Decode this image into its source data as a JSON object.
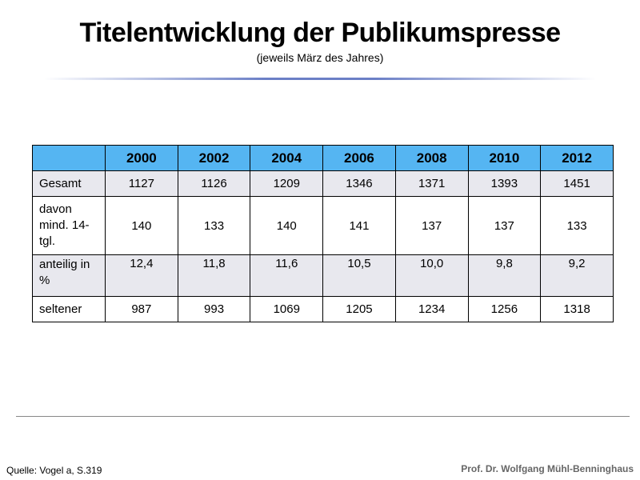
{
  "header": {
    "title": "Titelentwicklung der Publikumspresse",
    "subtitle": "(jeweils März des Jahres)"
  },
  "table": {
    "columns": [
      "2000",
      "2002",
      "2004",
      "2006",
      "2008",
      "2010",
      "2012"
    ],
    "rows": [
      {
        "label": "Gesamt",
        "cells": [
          "1127",
          "1126",
          "1209",
          "1346",
          "1371",
          "1393",
          "1451"
        ]
      },
      {
        "label": "davon mind. 14-tgl.",
        "cells": [
          "140",
          "133",
          "140",
          "141",
          "137",
          "137",
          "133"
        ]
      },
      {
        "label": "anteilig in %",
        "cells": [
          "12,4",
          "11,8",
          "11,6",
          "10,5",
          "10,0",
          "9,8",
          "9,2"
        ]
      },
      {
        "label": "seltener",
        "cells": [
          "987",
          "993",
          "1069",
          "1205",
          "1234",
          "1256",
          "1318"
        ]
      }
    ]
  },
  "footer": {
    "source": "Quelle: Vogel a, S.319",
    "author": "Prof. Dr. Wolfgang Mühl-Benninghaus"
  }
}
